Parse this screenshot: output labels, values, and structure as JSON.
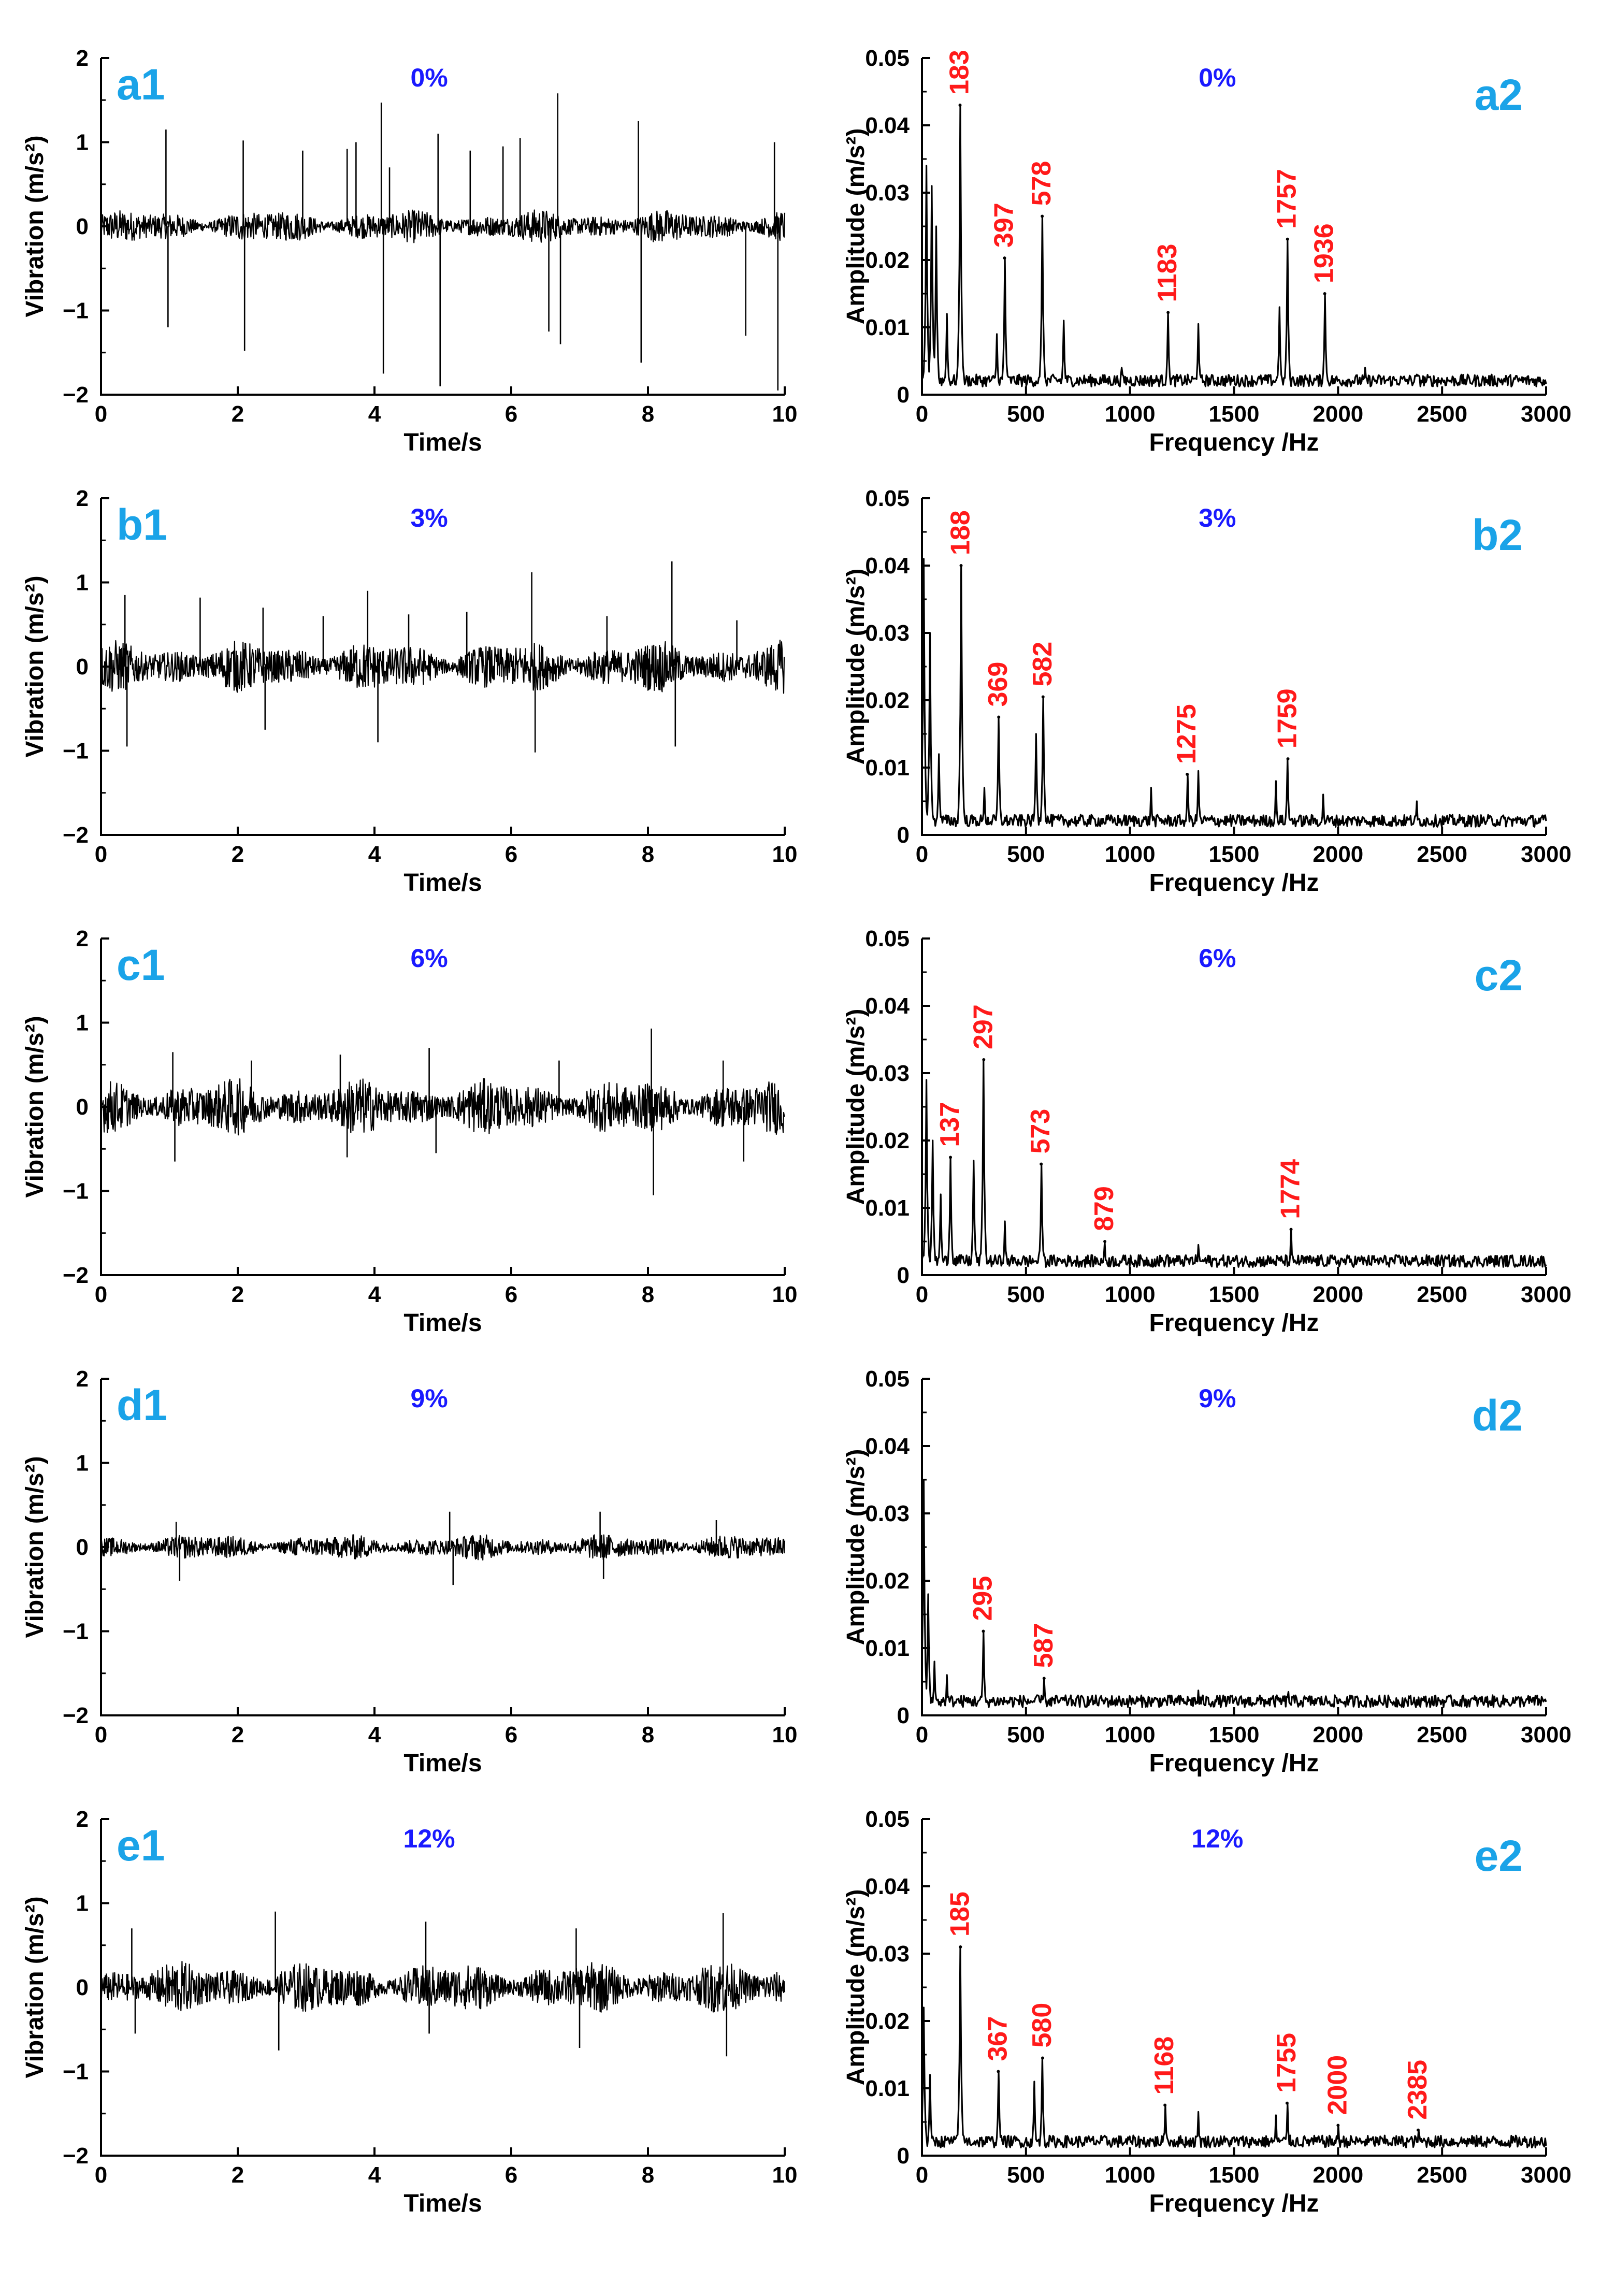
{
  "chart_data": [
    {
      "id": "a1",
      "type": "line",
      "kind": "time",
      "panel_label": "a1",
      "condition": "0%",
      "xlabel": "Time/s",
      "ylabel": "Vibration (m/s²)",
      "xlim": [
        0,
        10
      ],
      "ylim": [
        -2,
        2
      ],
      "xticks": [
        "0",
        "2",
        "4",
        "6",
        "8",
        "10"
      ],
      "yticks": [
        "−2",
        "−1",
        "0",
        "1",
        "2"
      ],
      "noise_amplitude": 0.13,
      "spikes": [
        [
          0.95,
          1.15
        ],
        [
          0.98,
          -1.2
        ],
        [
          2.08,
          1.02
        ],
        [
          2.1,
          -1.48
        ],
        [
          2.95,
          0.9
        ],
        [
          3.6,
          0.92
        ],
        [
          3.73,
          1.0
        ],
        [
          4.1,
          1.47
        ],
        [
          4.13,
          -1.75
        ],
        [
          4.22,
          0.7
        ],
        [
          4.93,
          1.1
        ],
        [
          4.96,
          -1.9
        ],
        [
          5.4,
          0.9
        ],
        [
          5.88,
          0.95
        ],
        [
          6.13,
          1.05
        ],
        [
          6.55,
          -1.25
        ],
        [
          6.68,
          1.58
        ],
        [
          6.72,
          -1.4
        ],
        [
          7.86,
          1.25
        ],
        [
          7.9,
          -1.62
        ],
        [
          9.43,
          -1.3
        ],
        [
          9.85,
          1.0
        ],
        [
          9.9,
          -1.95
        ]
      ]
    },
    {
      "id": "a2",
      "type": "line",
      "kind": "spectrum",
      "panel_label": "a2",
      "condition": "0%",
      "xlabel": "Frequency /Hz",
      "ylabel": "Amplitude (m/s²)",
      "xlim": [
        0,
        3000
      ],
      "ylim": [
        0,
        0.05
      ],
      "xticks": [
        "0",
        "500",
        "1000",
        "1500",
        "2000",
        "2500",
        "3000"
      ],
      "yticks": [
        "0",
        "0.01",
        "0.02",
        "0.03",
        "0.04",
        "0.05"
      ],
      "peaks": [
        {
          "f": 183,
          "a": 0.043,
          "label": "183"
        },
        {
          "f": 397,
          "a": 0.0203,
          "label": "397"
        },
        {
          "f": 578,
          "a": 0.0265,
          "label": "578"
        },
        {
          "f": 1183,
          "a": 0.0122,
          "label": "1183"
        },
        {
          "f": 1757,
          "a": 0.0231,
          "label": "1757"
        },
        {
          "f": 1936,
          "a": 0.015,
          "label": "1936"
        }
      ],
      "minor": [
        [
          20,
          0.034
        ],
        [
          45,
          0.031
        ],
        [
          70,
          0.025
        ],
        [
          120,
          0.012
        ],
        [
          360,
          0.009
        ],
        [
          680,
          0.011
        ],
        [
          960,
          0.004
        ],
        [
          1330,
          0.0105
        ],
        [
          1720,
          0.013
        ],
        [
          2130,
          0.004
        ],
        [
          2380,
          0.003
        ]
      ]
    },
    {
      "id": "b1",
      "type": "line",
      "kind": "time",
      "panel_label": "b1",
      "condition": "3%",
      "xlabel": "Time/s",
      "ylabel": "Vibration (m/s²)",
      "xlim": [
        0,
        10
      ],
      "ylim": [
        -2,
        2
      ],
      "xticks": [
        "0",
        "2",
        "4",
        "6",
        "8",
        "10"
      ],
      "yticks": [
        "−2",
        "−1",
        "0",
        "1",
        "2"
      ],
      "noise_amplitude": 0.2,
      "spikes": [
        [
          0.35,
          0.85
        ],
        [
          0.38,
          -0.95
        ],
        [
          1.45,
          0.82
        ],
        [
          2.37,
          0.7
        ],
        [
          2.4,
          -0.75
        ],
        [
          3.25,
          0.6
        ],
        [
          3.9,
          0.9
        ],
        [
          4.05,
          -0.9
        ],
        [
          4.5,
          0.62
        ],
        [
          5.35,
          0.65
        ],
        [
          6.3,
          1.12
        ],
        [
          6.35,
          -1.02
        ],
        [
          7.4,
          0.6
        ],
        [
          8.35,
          1.25
        ],
        [
          8.4,
          -0.95
        ],
        [
          9.3,
          0.55
        ]
      ]
    },
    {
      "id": "b2",
      "type": "line",
      "kind": "spectrum",
      "panel_label": "b2",
      "condition": "3%",
      "xlabel": "Frequency /Hz",
      "ylabel": "Amplitude (m/s²)",
      "xlim": [
        0,
        3000
      ],
      "ylim": [
        0,
        0.05
      ],
      "xticks": [
        "0",
        "500",
        "1000",
        "1500",
        "2000",
        "2500",
        "3000"
      ],
      "yticks": [
        "0",
        "0.01",
        "0.02",
        "0.03",
        "0.04",
        "0.05"
      ],
      "peaks": [
        {
          "f": 188,
          "a": 0.04,
          "label": "188"
        },
        {
          "f": 369,
          "a": 0.0175,
          "label": "369"
        },
        {
          "f": 582,
          "a": 0.0205,
          "label": "582"
        },
        {
          "f": 1275,
          "a": 0.009,
          "label": "1275"
        },
        {
          "f": 1759,
          "a": 0.0113,
          "label": "1759"
        }
      ],
      "minor": [
        [
          10,
          0.041
        ],
        [
          40,
          0.03
        ],
        [
          80,
          0.012
        ],
        [
          300,
          0.007
        ],
        [
          550,
          0.015
        ],
        [
          1100,
          0.007
        ],
        [
          1330,
          0.0095
        ],
        [
          1700,
          0.008
        ],
        [
          1930,
          0.006
        ],
        [
          2380,
          0.005
        ]
      ]
    },
    {
      "id": "c1",
      "type": "line",
      "kind": "time",
      "panel_label": "c1",
      "condition": "6%",
      "xlabel": "Time/s",
      "ylabel": "Vibration (m/s²)",
      "xlim": [
        0,
        10
      ],
      "ylim": [
        -2,
        2
      ],
      "xticks": [
        "0",
        "2",
        "4",
        "6",
        "8",
        "10"
      ],
      "yticks": [
        "−2",
        "−1",
        "0",
        "1",
        "2"
      ],
      "noise_amplitude": 0.22,
      "spikes": [
        [
          1.05,
          0.65
        ],
        [
          1.08,
          -0.65
        ],
        [
          2.2,
          0.55
        ],
        [
          3.5,
          0.62
        ],
        [
          3.6,
          -0.6
        ],
        [
          4.8,
          0.7
        ],
        [
          4.9,
          -0.55
        ],
        [
          6.7,
          0.55
        ],
        [
          8.05,
          0.93
        ],
        [
          8.08,
          -1.05
        ],
        [
          9.1,
          0.55
        ],
        [
          9.4,
          -0.65
        ]
      ]
    },
    {
      "id": "c2",
      "type": "line",
      "kind": "spectrum",
      "panel_label": "c2",
      "condition": "6%",
      "xlabel": "Frequency /Hz",
      "ylabel": "Amplitude (m/s²)",
      "xlim": [
        0,
        3000
      ],
      "ylim": [
        0,
        0.05
      ],
      "xticks": [
        "0",
        "500",
        "1000",
        "1500",
        "2000",
        "2500",
        "3000"
      ],
      "yticks": [
        "0",
        "0.01",
        "0.02",
        "0.03",
        "0.04",
        "0.05"
      ],
      "peaks": [
        {
          "f": 137,
          "a": 0.0175,
          "label": "137"
        },
        {
          "f": 297,
          "a": 0.032,
          "label": "297"
        },
        {
          "f": 573,
          "a": 0.0165,
          "label": "573"
        },
        {
          "f": 879,
          "a": 0.005,
          "label": "879"
        },
        {
          "f": 1774,
          "a": 0.0068,
          "label": "1774"
        }
      ],
      "minor": [
        [
          20,
          0.029
        ],
        [
          50,
          0.02
        ],
        [
          90,
          0.012
        ],
        [
          250,
          0.017
        ],
        [
          400,
          0.008
        ],
        [
          1180,
          0.003
        ],
        [
          1330,
          0.0045
        ]
      ]
    },
    {
      "id": "d1",
      "type": "line",
      "kind": "time",
      "panel_label": "d1",
      "condition": "9%",
      "xlabel": "Time/s",
      "ylabel": "Vibration (m/s²)",
      "xlim": [
        0,
        10
      ],
      "ylim": [
        -2,
        2
      ],
      "xticks": [
        "0",
        "2",
        "4",
        "6",
        "8",
        "10"
      ],
      "yticks": [
        "−2",
        "−1",
        "0",
        "1",
        "2"
      ],
      "noise_amplitude": 0.1,
      "spikes": [
        [
          1.1,
          0.3
        ],
        [
          1.15,
          -0.4
        ],
        [
          5.1,
          0.42
        ],
        [
          5.15,
          -0.45
        ],
        [
          7.3,
          0.42
        ],
        [
          7.35,
          -0.38
        ],
        [
          9.0,
          0.32
        ]
      ]
    },
    {
      "id": "d2",
      "type": "line",
      "kind": "spectrum",
      "panel_label": "d2",
      "condition": "9%",
      "xlabel": "Frequency /Hz",
      "ylabel": "Amplitude (m/s²)",
      "xlim": [
        0,
        3000
      ],
      "ylim": [
        0,
        0.05
      ],
      "xticks": [
        "0",
        "500",
        "1000",
        "1500",
        "2000",
        "2500",
        "3000"
      ],
      "yticks": [
        "0",
        "0.01",
        "0.02",
        "0.03",
        "0.04",
        "0.05"
      ],
      "peaks": [
        {
          "f": 295,
          "a": 0.0125,
          "label": "295"
        },
        {
          "f": 587,
          "a": 0.0055,
          "label": "587"
        }
      ],
      "minor": [
        [
          10,
          0.035
        ],
        [
          30,
          0.018
        ],
        [
          60,
          0.008
        ],
        [
          120,
          0.006
        ],
        [
          1330,
          0.0037
        ],
        [
          1760,
          0.0035
        ],
        [
          1170,
          0.0015
        ]
      ]
    },
    {
      "id": "e1",
      "type": "line",
      "kind": "time",
      "panel_label": "e1",
      "condition": "12%",
      "xlabel": "Time/s",
      "ylabel": "Vibration (m/s²)",
      "xlim": [
        0,
        10
      ],
      "ylim": [
        -2,
        2
      ],
      "xticks": [
        "0",
        "2",
        "4",
        "6",
        "8",
        "10"
      ],
      "yticks": [
        "−2",
        "−1",
        "0",
        "1",
        "2"
      ],
      "noise_amplitude": 0.2,
      "spikes": [
        [
          0.45,
          0.7
        ],
        [
          0.5,
          -0.55
        ],
        [
          2.55,
          0.9
        ],
        [
          2.6,
          -0.75
        ],
        [
          4.75,
          0.78
        ],
        [
          4.8,
          -0.55
        ],
        [
          6.95,
          0.7
        ],
        [
          7.0,
          -0.72
        ],
        [
          9.1,
          0.88
        ],
        [
          9.15,
          -0.82
        ]
      ]
    },
    {
      "id": "e2",
      "type": "line",
      "kind": "spectrum",
      "panel_label": "e2",
      "condition": "12%",
      "xlabel": "Frequency /Hz",
      "ylabel": "Amplitude (m/s²)",
      "xlim": [
        0,
        3000
      ],
      "ylim": [
        0,
        0.05
      ],
      "xticks": [
        "0",
        "500",
        "1000",
        "1500",
        "2000",
        "2500",
        "3000"
      ],
      "yticks": [
        "0",
        "0.01",
        "0.02",
        "0.03",
        "0.04",
        "0.05"
      ],
      "peaks": [
        {
          "f": 185,
          "a": 0.031,
          "label": "185"
        },
        {
          "f": 367,
          "a": 0.0125,
          "label": "367"
        },
        {
          "f": 580,
          "a": 0.0145,
          "label": "580"
        },
        {
          "f": 1168,
          "a": 0.0075,
          "label": "1168"
        },
        {
          "f": 1755,
          "a": 0.0078,
          "label": "1755"
        },
        {
          "f": 2000,
          "a": 0.0045,
          "label": "2000"
        },
        {
          "f": 2385,
          "a": 0.0038,
          "label": "2385"
        }
      ],
      "minor": [
        [
          10,
          0.022
        ],
        [
          40,
          0.012
        ],
        [
          540,
          0.011
        ],
        [
          1330,
          0.0065
        ],
        [
          1700,
          0.006
        ]
      ]
    }
  ]
}
